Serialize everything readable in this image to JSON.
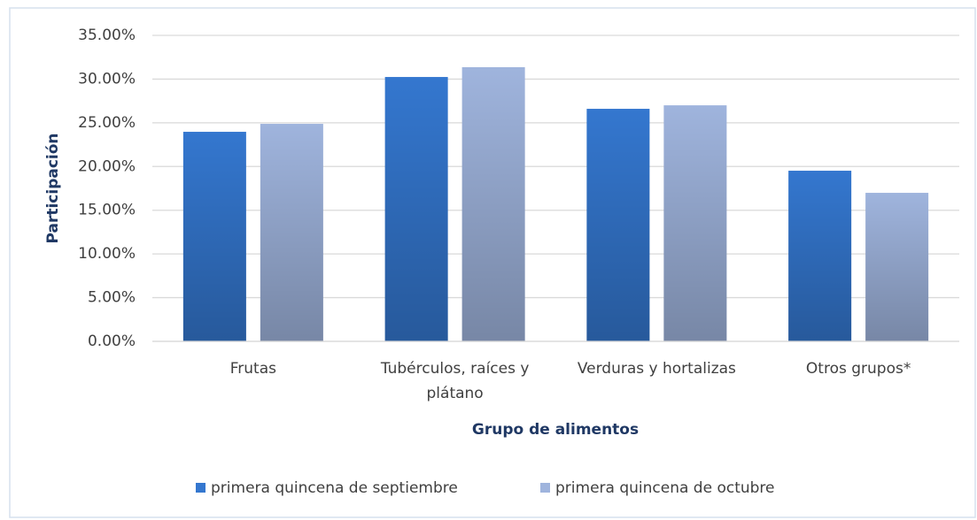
{
  "chart_data": {
    "type": "bar",
    "y_label": "Participación",
    "x_label": "Grupo de alimentos",
    "categories": [
      "Frutas",
      "Tubérculos, raíces y plátano",
      "Verduras y hortalizas",
      "Otros grupos*"
    ],
    "series": [
      {
        "name": "primera quincena de septiembre",
        "color": "#3477cf",
        "values": [
          23.97,
          30.24,
          26.6,
          19.52
        ]
      },
      {
        "name": "primera quincena de octubre",
        "color": "#9fb4dd",
        "values": [
          24.88,
          31.36,
          27.0,
          16.99
        ]
      }
    ],
    "ylim": [
      0,
      35
    ],
    "yticks": [
      {
        "value": 0,
        "label": "0.00%"
      },
      {
        "value": 5,
        "label": "5.00%"
      },
      {
        "value": 10,
        "label": "10.00%"
      },
      {
        "value": 15,
        "label": "15.00%"
      },
      {
        "value": 20,
        "label": "20.00%"
      },
      {
        "value": 25,
        "label": "25.00%"
      },
      {
        "value": 30,
        "label": "30.00%"
      },
      {
        "value": 35,
        "label": "35.00%"
      }
    ],
    "grid": true,
    "legend": "bottom"
  }
}
